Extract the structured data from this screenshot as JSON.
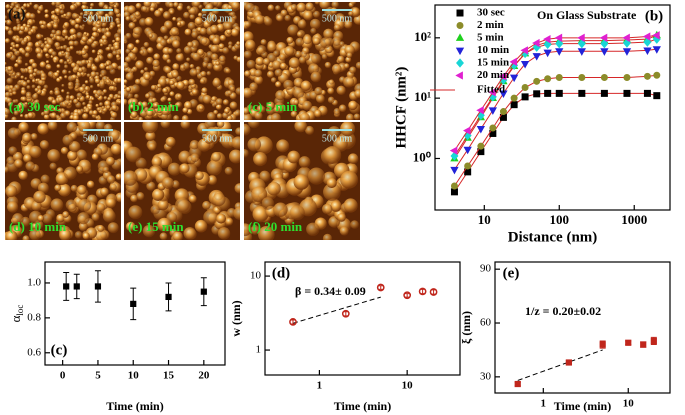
{
  "images": {
    "corner_label": "(a)",
    "scale_bar": "500 nm",
    "labels": [
      "(a) 30 sec",
      "(b) 2 min",
      "(c) 5 min",
      "(d) 10 min",
      "(e) 15 min",
      "(f) 20 min"
    ]
  },
  "chart_data": [
    {
      "type": "scatter",
      "panel": "(b)",
      "title": "On Glass Substrate",
      "xlabel": "Distance (nm)",
      "ylabel": "HHCF (nm²)",
      "xlog": true,
      "ylog": true,
      "xlim": [
        2.2,
        3000
      ],
      "ylim": [
        0.14,
        350
      ],
      "xticks": [
        10,
        100,
        1000
      ],
      "yticks": [
        {
          "value": 1,
          "label": "10⁰"
        },
        {
          "value": 10,
          "label": "10¹"
        },
        {
          "value": 100,
          "label": "10²"
        }
      ],
      "fit_name": "Fitted",
      "fit_color": "#d62728",
      "x": [
        4,
        6,
        9,
        13,
        18,
        25,
        35,
        50,
        70,
        100,
        200,
        400,
        800,
        1500,
        2000
      ],
      "series": [
        {
          "name": "30 sec",
          "color": "#000000",
          "marker": "square",
          "values": [
            0.28,
            0.6,
            1.3,
            2.6,
            4.8,
            7.8,
            10.5,
            11.8,
            12,
            12,
            12,
            12,
            12,
            12,
            11
          ]
        },
        {
          "name": "2 min",
          "color": "#8c8c2a",
          "marker": "circle",
          "values": [
            0.35,
            0.75,
            1.6,
            3.2,
            6,
            10,
            15,
            19,
            21,
            22,
            22,
            22,
            22,
            23,
            24
          ]
        },
        {
          "name": "5 min",
          "color": "#1fd11f",
          "marker": "triangle-up",
          "values": [
            1.0,
            2.2,
            4.8,
            10,
            19,
            34,
            55,
            75,
            85,
            88,
            90,
            90,
            92,
            95,
            110
          ]
        },
        {
          "name": "10 min",
          "color": "#2323d8",
          "marker": "triangle-down",
          "values": [
            0.65,
            1.4,
            3.1,
            6.3,
            12,
            22,
            37,
            50,
            57,
            60,
            60,
            60,
            60,
            62,
            65
          ]
        },
        {
          "name": "15 min",
          "color": "#18d6d6",
          "marker": "diamond",
          "values": [
            1.1,
            2.4,
            5.2,
            10.5,
            20,
            35,
            55,
            70,
            78,
            80,
            80,
            80,
            82,
            85,
            95
          ]
        },
        {
          "name": "20 min",
          "color": "#e020d0",
          "marker": "triangle-left",
          "values": [
            1.35,
            2.9,
            6.3,
            12.5,
            23,
            40,
            62,
            82,
            95,
            100,
            100,
            100,
            100,
            105,
            110
          ]
        }
      ]
    },
    {
      "type": "errorbar",
      "panel": "(c)",
      "xlabel": "Time (min)",
      "ylabel_symbol": "α",
      "ylabel_subscript": "loc",
      "xlim": [
        -2.5,
        23
      ],
      "ylim": [
        0.53,
        1.12
      ],
      "xticks": [
        0,
        5,
        10,
        15,
        20
      ],
      "yticks": [
        0.6,
        0.8,
        {
          "value": 1,
          "label": "1.0"
        }
      ],
      "x": [
        0.5,
        2,
        5,
        10,
        15,
        20
      ],
      "color": "#000000",
      "marker": "square",
      "values": [
        0.98,
        0.98,
        0.98,
        0.88,
        0.92,
        0.95
      ],
      "errors": [
        0.08,
        0.07,
        0.09,
        0.09,
        0.08,
        0.08
      ]
    },
    {
      "type": "errorbar",
      "panel": "(d)",
      "xlabel": "Time (min)",
      "ylabel": "w (nm)",
      "annotation": "β = 0.34± 0.09",
      "xlog": true,
      "ylog": true,
      "xlim": [
        0.24,
        40
      ],
      "ylim": [
        0.46,
        15.5
      ],
      "xticks": [
        1,
        10
      ],
      "yticks": [
        1,
        10
      ],
      "x": [
        0.5,
        2,
        5,
        10,
        15,
        20
      ],
      "color": "#c0261c",
      "marker": "open-circle",
      "values": [
        2.4,
        3.1,
        7,
        5.5,
        6.2,
        6.1
      ],
      "errors": [
        0.15,
        0.2,
        0.4,
        0.3,
        0.4,
        0.4
      ],
      "fit": {
        "x": [
          0.5,
          5
        ],
        "values": [
          2.3,
          5.2
        ]
      }
    },
    {
      "type": "errorbar",
      "panel": "(e)",
      "xlabel": "Time (min)",
      "ylabel": "ξ (nm)",
      "annotation": "1/z = 0.20±0.02",
      "xlog": true,
      "xlim": [
        0.27,
        31
      ],
      "ylim": [
        21,
        94
      ],
      "xticks": [
        1,
        10
      ],
      "yticks": [
        30,
        60,
        90
      ],
      "x": [
        0.5,
        2,
        5,
        10,
        15,
        20
      ],
      "color": "#c0261c",
      "marker": "square",
      "values": [
        26,
        38,
        48,
        49,
        48,
        50
      ],
      "errors": [
        1,
        1,
        2,
        1,
        1.5,
        2
      ],
      "fit": {
        "x": [
          0.5,
          5
        ],
        "values": [
          28,
          45
        ]
      }
    }
  ]
}
